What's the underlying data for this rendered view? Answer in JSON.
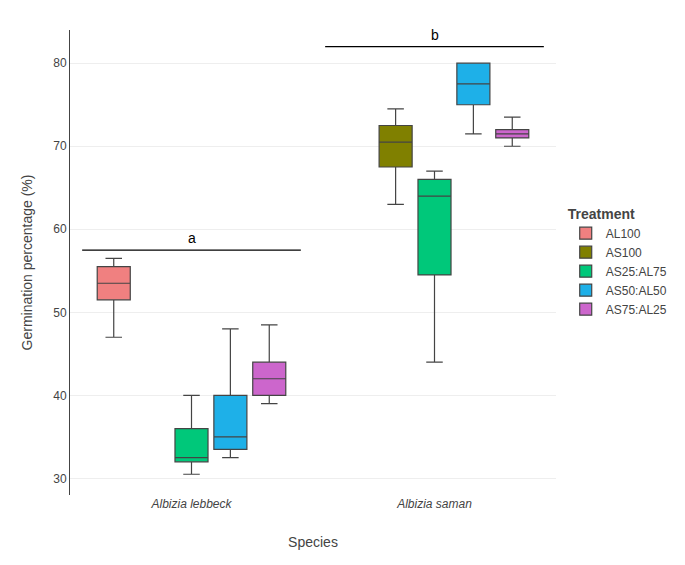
{
  "chart_data": {
    "type": "box",
    "xlabel": "Species",
    "ylabel": "Germination percentage (%)",
    "categories": [
      "Albizia lebbeck",
      "Albizia saman"
    ],
    "series": [
      {
        "name": "AL100",
        "color": "#F08080",
        "values": [
          {
            "q1": 51.5,
            "median": 53.5,
            "q3": 55.5,
            "whislo": 47.0,
            "whishi": 56.5
          },
          null
        ]
      },
      {
        "name": "AS100",
        "color": "#808000",
        "values": [
          null,
          {
            "q1": 67.5,
            "median": 70.5,
            "q3": 72.5,
            "whislo": 63.0,
            "whishi": 74.5
          }
        ]
      },
      {
        "name": "AS25:AL75",
        "color": "#00C87A",
        "values": [
          {
            "q1": 32.0,
            "median": 32.5,
            "q3": 36.0,
            "whislo": 30.5,
            "whishi": 40.0
          },
          {
            "q1": 54.5,
            "median": 64.0,
            "q3": 66.0,
            "whislo": 44.0,
            "whishi": 67.0
          }
        ]
      },
      {
        "name": "AS50:AL50",
        "color": "#1EB0E8",
        "values": [
          {
            "q1": 33.5,
            "median": 35.0,
            "q3": 40.0,
            "whislo": 32.5,
            "whishi": 48.0
          },
          {
            "q1": 75.0,
            "median": 77.5,
            "q3": 80.0,
            "whislo": 71.5,
            "whishi": 80.0
          }
        ]
      },
      {
        "name": "AS75:AL25",
        "color": "#CC66CC",
        "values": [
          {
            "q1": 40.0,
            "median": 42.0,
            "q3": 44.0,
            "whislo": 39.0,
            "whishi": 48.5
          },
          {
            "q1": 71.0,
            "median": 71.5,
            "q3": 72.0,
            "whislo": 70.0,
            "whishi": 73.5
          }
        ]
      }
    ],
    "legend_title": "Treatment",
    "annotations": [
      {
        "text": "a",
        "category": "Albizia lebbeck",
        "y": 57.5
      },
      {
        "text": "b",
        "category": "Albizia saman",
        "y": 82.0
      }
    ],
    "ylim": [
      28,
      84
    ],
    "yticks": [
      30,
      40,
      50,
      60,
      70,
      80
    ],
    "grid": true
  }
}
